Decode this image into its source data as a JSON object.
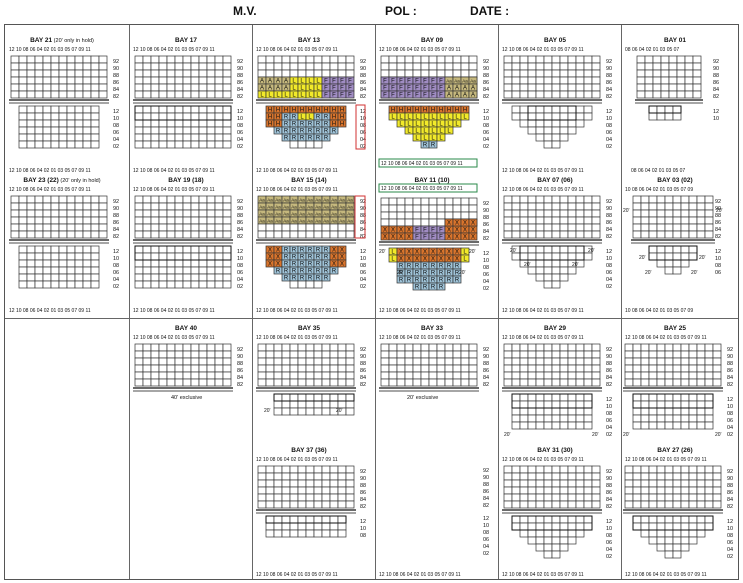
{
  "header": {
    "mv_label": "M.V.",
    "pol_label": "POL :",
    "date_label": "DATE :"
  },
  "colors": {
    "H": "#d8742c",
    "A": "#c5b87d",
    "L": "#f2ea2a",
    "F": "#a08cc3",
    "R": "#9fc3d8",
    "X": "#d8742c",
    "Aa": "#c5b87d",
    "grid": "#333333",
    "frame_red": "#d03030",
    "frame_green": "#2a8a4a"
  },
  "labels": {
    "deck_rows": [
      "92",
      "90",
      "88",
      "86",
      "84",
      "82"
    ],
    "hold_rows_full": [
      "12",
      "10",
      "08",
      "06",
      "04",
      "02"
    ],
    "hold_rows_short": [
      "12",
      "10",
      "08"
    ],
    "bay_cols": "12  10  08  06  04  02  01  03  05  07  09  11",
    "bay_cols_small": "08  06  04  02  01  03  05  07",
    "bay_cols_03": "10  08  06  04  02  01  03  05  07  09",
    "note_40": "40' exclusive",
    "note_20": "20' exclusive",
    "twenty": "20'"
  },
  "bays": [
    {
      "id": "b21",
      "name": "BAY 21",
      "suffix": "(20' only in hold)"
    },
    {
      "id": "b17",
      "name": "BAY 17",
      "suffix": ""
    },
    {
      "id": "b13",
      "name": "BAY 13",
      "suffix": ""
    },
    {
      "id": "b09",
      "name": "BAY 09",
      "suffix": ""
    },
    {
      "id": "b05",
      "name": "BAY 05",
      "suffix": ""
    },
    {
      "id": "b01",
      "name": "BAY 01",
      "suffix": ""
    },
    {
      "id": "b23",
      "name": "BAY 23 (22)",
      "suffix": "(20' only in hold)"
    },
    {
      "id": "b19",
      "name": "BAY 19 (18)",
      "suffix": ""
    },
    {
      "id": "b15",
      "name": "BAY 15 (14)",
      "suffix": ""
    },
    {
      "id": "b11",
      "name": "BAY 11 (10)",
      "suffix": ""
    },
    {
      "id": "b07",
      "name": "BAY 07 (06)",
      "suffix": ""
    },
    {
      "id": "b03",
      "name": "BAY 03 (02)",
      "suffix": ""
    },
    {
      "id": "b40",
      "name": "BAY 40",
      "suffix": ""
    },
    {
      "id": "b35",
      "name": "BAY 35",
      "suffix": ""
    },
    {
      "id": "b33",
      "name": "BAY 33",
      "suffix": ""
    },
    {
      "id": "b29",
      "name": "BAY 29",
      "suffix": ""
    },
    {
      "id": "b25",
      "name": "BAY 25",
      "suffix": ""
    },
    {
      "id": "b37",
      "name": "BAY 37 (36)",
      "suffix": ""
    },
    {
      "id": "b31",
      "name": "BAY 31 (30)",
      "suffix": ""
    },
    {
      "id": "b27",
      "name": "BAY 27 (26)",
      "suffix": ""
    }
  ],
  "stowage": {
    "b13_deck": [
      "AAAALLLLFFFF",
      "AAAALLLLFFFF",
      "LLLLLLLLFFFF"
    ],
    "b13_hold": [
      "HHHHHHHHHH",
      "HHRRLLRRHH",
      "HHRRRRRRHH",
      "RRRRRRRR",
      "RRRRRR"
    ],
    "b09_deck": [
      "FFFFFFFFAaAaAaAa",
      "FFFFFFFFAAAA",
      "FFFFFFFFAAAA"
    ],
    "b09_hold": [
      "HHHHHHHHHH",
      "LLLLLLLLLL",
      "LLLLLLLL",
      "LLLLLL",
      "LLLL",
      "RR"
    ],
    "b15_deck": [
      "AaAaAaAaAaAaAaAaAaAaAaAa",
      "AaAaAaAaAaAaAaAaAaAaAaAa",
      "AaAaAaAaAaAaAaAaAaAaAaAa",
      "AaAaAaAaAaAaAaAaAaAaAaAa"
    ],
    "b15_hold": [
      "XXRRRRRRXX",
      "XXRRRRRRXX",
      "XXRRRRRRXX",
      "RRRRRRRR",
      "RRRRRR"
    ],
    "b11_deck": [
      "XXXX",
      "XXXXFFFFXXXX",
      "XXXXFFFFXXXX"
    ],
    "b11_hold": [
      "LXXXXXXXXL",
      "LXXXXXXXXL",
      "RRRRRRRR",
      "RRRRRRRR",
      "RRRRRRRR",
      "RRRR"
    ]
  }
}
